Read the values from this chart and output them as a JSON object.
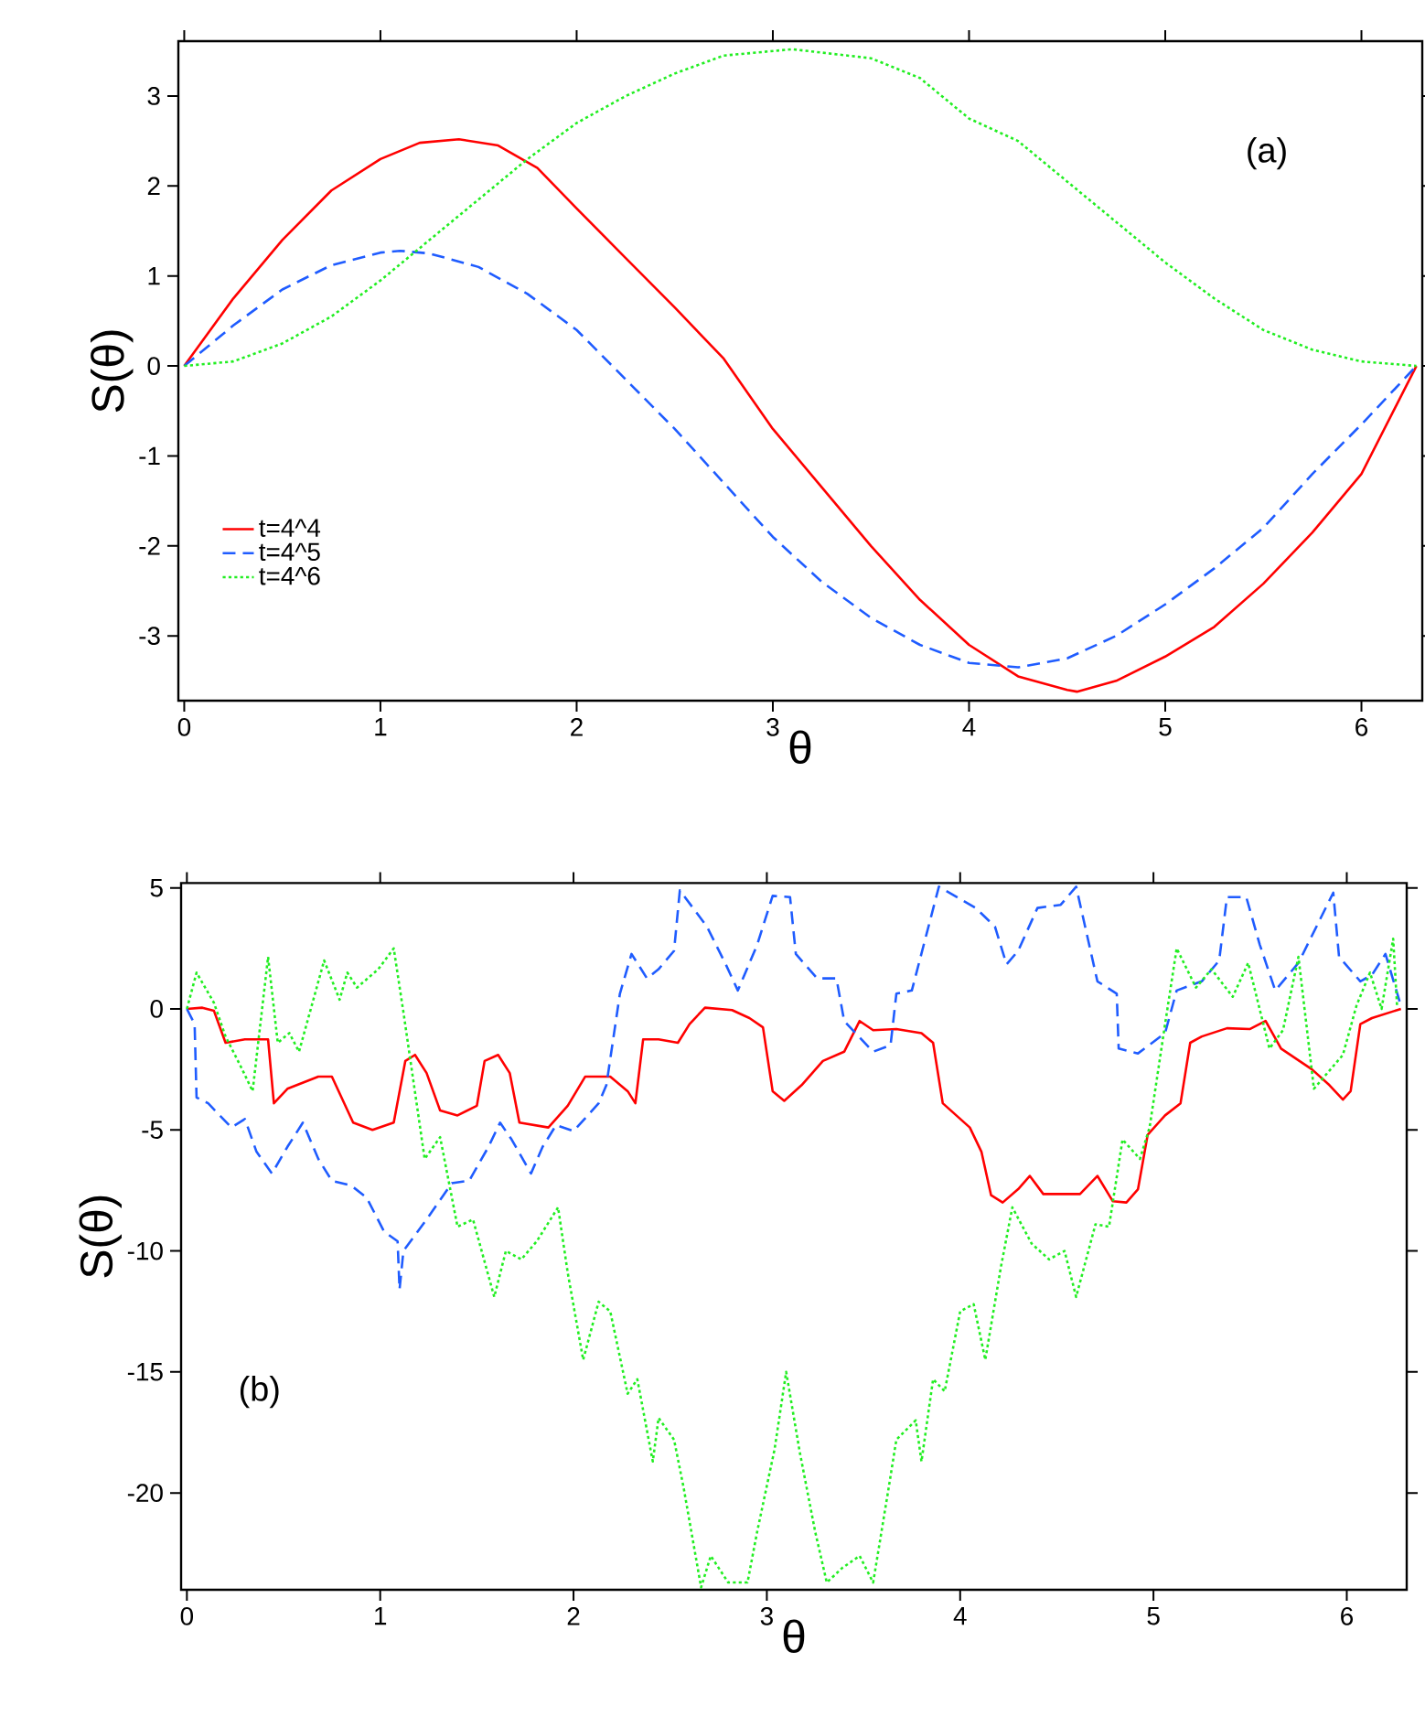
{
  "chart_data": [
    {
      "type": "line",
      "xlabel": "θ",
      "ylabel": "S(θ)",
      "annotations": [
        "(a)"
      ],
      "xlim": [
        -0.03,
        6.31
      ],
      "ylim": [
        -3.72,
        3.61
      ],
      "xticks": [
        0,
        1,
        2,
        3,
        4,
        5,
        6
      ],
      "yticks": [
        -3,
        -2,
        -1,
        0,
        1,
        2,
        3
      ],
      "legend": "bottom left",
      "series": [
        {
          "name": "t=4^4",
          "color": "#ff0000",
          "line_style": "solid",
          "x": [
            0,
            0.25,
            0.5,
            0.75,
            1.0,
            1.2,
            1.4,
            1.6,
            1.8,
            2.0,
            2.25,
            2.5,
            2.75,
            3.0,
            3.25,
            3.5,
            3.75,
            4.0,
            4.25,
            4.5,
            4.55,
            4.75,
            5.0,
            5.25,
            5.5,
            5.75,
            6.0,
            6.28
          ],
          "values": [
            0,
            0.75,
            1.4,
            1.95,
            2.3,
            2.48,
            2.52,
            2.45,
            2.2,
            1.75,
            1.2,
            0.65,
            0.08,
            -0.7,
            -1.35,
            -2.0,
            -2.6,
            -3.1,
            -3.45,
            -3.6,
            -3.62,
            -3.5,
            -3.23,
            -2.9,
            -2.42,
            -1.85,
            -1.2,
            0
          ]
        },
        {
          "name": "t=4^5",
          "color": "#1f5cff",
          "line_style": "dashed",
          "x": [
            0,
            0.25,
            0.5,
            0.75,
            1.0,
            1.1,
            1.25,
            1.5,
            1.75,
            2.0,
            2.25,
            2.5,
            2.75,
            3.0,
            3.25,
            3.5,
            3.75,
            4.0,
            4.25,
            4.5,
            4.75,
            5.0,
            5.25,
            5.5,
            5.75,
            6.0,
            6.28
          ],
          "values": [
            0,
            0.45,
            0.85,
            1.12,
            1.26,
            1.28,
            1.25,
            1.1,
            0.8,
            0.4,
            -0.15,
            -0.7,
            -1.3,
            -1.9,
            -2.4,
            -2.8,
            -3.1,
            -3.3,
            -3.35,
            -3.25,
            -3.0,
            -2.65,
            -2.25,
            -1.8,
            -1.2,
            -0.65,
            0
          ]
        },
        {
          "name": "t=4^6",
          "color": "#22ee22",
          "line_style": "dotted",
          "x": [
            0,
            0.25,
            0.5,
            0.75,
            1.0,
            1.25,
            1.5,
            1.75,
            2.0,
            2.25,
            2.5,
            2.75,
            3.1,
            3.5,
            3.75,
            4.0,
            4.25,
            4.5,
            4.75,
            5.0,
            5.25,
            5.5,
            5.75,
            6.0,
            6.28
          ],
          "values": [
            0,
            0.05,
            0.25,
            0.55,
            0.95,
            1.4,
            1.85,
            2.3,
            2.7,
            3.0,
            3.25,
            3.45,
            3.52,
            3.42,
            3.2,
            2.75,
            2.5,
            2.05,
            1.6,
            1.15,
            0.75,
            0.4,
            0.18,
            0.05,
            0
          ]
        }
      ]
    },
    {
      "type": "line",
      "xlabel": "θ",
      "ylabel": "S(θ)",
      "annotations": [
        "(b)"
      ],
      "xlim": [
        -0.03,
        6.31
      ],
      "ylim": [
        -24,
        5.2
      ],
      "xticks": [
        0,
        1,
        2,
        3,
        4,
        5,
        6
      ],
      "yticks": [
        -20,
        -15,
        -10,
        -5,
        0,
        5
      ],
      "series": [
        {
          "color": "#ff0000",
          "line_style": "solid",
          "x": [
            0,
            0.08,
            0.14,
            0.2,
            0.3,
            0.42,
            0.45,
            0.52,
            0.68,
            0.75,
            0.86,
            0.96,
            1.07,
            1.13,
            1.18,
            1.24,
            1.31,
            1.4,
            1.5,
            1.54,
            1.61,
            1.67,
            1.72,
            1.87,
            1.97,
            2.06,
            2.19,
            2.28,
            2.32,
            2.36,
            2.44,
            2.54,
            2.6,
            2.68,
            2.82,
            2.91,
            2.98,
            3.03,
            3.09,
            3.18,
            3.29,
            3.4,
            3.48,
            3.55,
            3.67,
            3.8,
            3.86,
            3.91,
            4.05,
            4.11,
            4.16,
            4.22,
            4.3,
            4.36,
            4.43,
            4.62,
            4.71,
            4.79,
            4.86,
            4.92,
            4.97,
            5.06,
            5.14,
            5.19,
            5.25,
            5.38,
            5.5,
            5.58,
            5.66,
            5.82,
            5.91,
            5.98,
            6.02,
            6.07,
            6.13,
            6.28
          ],
          "values": [
            0,
            0.05,
            -0.08,
            -1.4,
            -1.26,
            -1.26,
            -3.9,
            -3.3,
            -2.8,
            -2.8,
            -4.7,
            -5.0,
            -4.7,
            -2.15,
            -1.9,
            -2.65,
            -4.2,
            -4.4,
            -4.0,
            -2.15,
            -1.9,
            -2.65,
            -4.7,
            -4.9,
            -4.0,
            -2.8,
            -2.8,
            -3.4,
            -3.9,
            -1.26,
            -1.26,
            -1.4,
            -0.63,
            0.05,
            -0.05,
            -0.38,
            -0.76,
            -3.4,
            -3.8,
            -3.15,
            -2.15,
            -1.77,
            -0.5,
            -0.88,
            -0.83,
            -1.0,
            -1.4,
            -3.9,
            -4.9,
            -5.9,
            -7.7,
            -8.0,
            -7.45,
            -6.9,
            -7.65,
            -7.65,
            -6.9,
            -7.95,
            -8.0,
            -7.45,
            -5.2,
            -4.4,
            -3.9,
            -1.4,
            -1.14,
            -0.8,
            -0.83,
            -0.5,
            -1.64,
            -2.5,
            -3.15,
            -3.75,
            -3.4,
            -0.63,
            -0.38,
            0
          ]
        },
        {
          "color": "#1f5cff",
          "line_style": "dashed",
          "x": [
            0,
            0.04,
            0.05,
            0.11,
            0.23,
            0.3,
            0.36,
            0.44,
            0.52,
            0.6,
            0.68,
            0.75,
            0.85,
            0.93,
            1.02,
            1.09,
            1.1,
            1.12,
            1.24,
            1.37,
            1.46,
            1.56,
            1.62,
            1.68,
            1.78,
            1.84,
            1.91,
            2.0,
            2.13,
            2.17,
            2.24,
            2.3,
            2.38,
            2.44,
            2.52,
            2.55,
            2.69,
            2.79,
            2.85,
            2.95,
            3.03,
            3.12,
            3.15,
            3.26,
            3.36,
            3.4,
            3.55,
            3.64,
            3.67,
            3.75,
            3.89,
            4.08,
            4.18,
            4.24,
            4.3,
            4.4,
            4.52,
            4.6,
            4.71,
            4.81,
            4.82,
            4.92,
            5.06,
            5.12,
            5.25,
            5.34,
            5.38,
            5.48,
            5.55,
            5.63,
            5.75,
            5.93,
            5.96,
            6.07,
            6.13,
            6.2,
            6.28
          ],
          "values": [
            0,
            -0.63,
            -3.66,
            -3.9,
            -4.9,
            -4.55,
            -5.9,
            -6.8,
            -5.7,
            -4.7,
            -6.2,
            -7.1,
            -7.3,
            -7.8,
            -9.2,
            -9.6,
            -11.6,
            -10.0,
            -8.7,
            -7.2,
            -7.1,
            -5.7,
            -4.7,
            -5.4,
            -6.8,
            -5.7,
            -4.8,
            -5.05,
            -3.9,
            -3.15,
            0.63,
            2.27,
            1.26,
            1.64,
            2.4,
            4.9,
            3.4,
            1.8,
            0.76,
            2.65,
            4.67,
            4.62,
            2.27,
            1.26,
            1.26,
            -0.5,
            -1.77,
            -1.5,
            0.63,
            0.76,
            5.05,
            4.17,
            3.4,
            1.84,
            2.4,
            4.17,
            4.3,
            5.05,
            1.14,
            0.63,
            -1.64,
            -1.84,
            -1.0,
            0.76,
            1.14,
            2.0,
            4.62,
            4.62,
            2.65,
            0.76,
            1.9,
            4.8,
            2.15,
            1.14,
            1.4,
            2.27,
            0.13
          ]
        },
        {
          "color": "#22ee22",
          "line_style": "dotted",
          "x": [
            0,
            0.05,
            0.14,
            0.2,
            0.28,
            0.34,
            0.42,
            0.47,
            0.53,
            0.58,
            0.71,
            0.79,
            0.83,
            0.88,
            0.99,
            1.07,
            1.12,
            1.23,
            1.31,
            1.4,
            1.48,
            1.59,
            1.65,
            1.73,
            1.81,
            1.92,
            1.97,
            2.05,
            2.13,
            2.19,
            2.28,
            2.33,
            2.41,
            2.44,
            2.52,
            2.57,
            2.66,
            2.71,
            2.8,
            2.9,
            2.95,
            3.04,
            3.1,
            3.17,
            3.25,
            3.31,
            3.39,
            3.48,
            3.55,
            3.63,
            3.67,
            3.77,
            3.8,
            3.86,
            3.92,
            4.0,
            4.07,
            4.13,
            4.21,
            4.27,
            4.37,
            4.46,
            4.54,
            4.6,
            4.7,
            4.77,
            4.84,
            4.93,
            4.98,
            5.06,
            5.12,
            5.22,
            5.3,
            5.41,
            5.49,
            5.6,
            5.67,
            5.75,
            5.83,
            5.98,
            6.05,
            6.12,
            6.18,
            6.24,
            6.26
          ],
          "values": [
            0,
            1.5,
            0.25,
            -1.14,
            -2.4,
            -3.4,
            2.15,
            -1.4,
            -1.0,
            -1.77,
            2.0,
            0.38,
            1.5,
            0.88,
            1.64,
            2.5,
            -0.13,
            -6.2,
            -5.3,
            -9.0,
            -8.7,
            -11.9,
            -10.0,
            -10.35,
            -9.6,
            -8.2,
            -10.9,
            -14.5,
            -12.1,
            -12.5,
            -15.9,
            -15.3,
            -18.7,
            -16.9,
            -17.8,
            -19.8,
            -23.9,
            -22.6,
            -23.7,
            -23.7,
            -21.6,
            -18.2,
            -15.0,
            -18.3,
            -21.6,
            -23.7,
            -23.1,
            -22.6,
            -23.7,
            -19.8,
            -17.8,
            -17.0,
            -18.7,
            -15.3,
            -15.8,
            -12.5,
            -12.2,
            -14.5,
            -10.7,
            -8.2,
            -9.7,
            -10.35,
            -10.0,
            -11.9,
            -8.9,
            -9.0,
            -5.4,
            -6.2,
            -4.9,
            -0.63,
            2.5,
            0.88,
            1.64,
            0.5,
            1.9,
            -1.64,
            -0.88,
            2.15,
            -3.3,
            -1.9,
            0.13,
            1.5,
            0,
            2.9,
            0.13
          ]
        }
      ]
    }
  ]
}
